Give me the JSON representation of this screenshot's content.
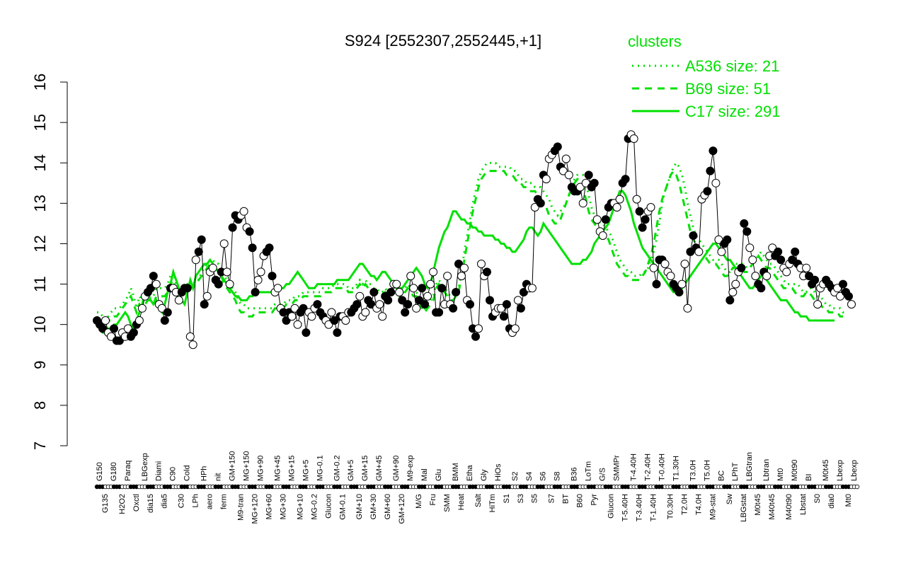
{
  "chart_data": {
    "type": "line",
    "title": "S924 [2552307,2552445,+1]",
    "xlabel": "",
    "ylabel": "",
    "ylim": [
      7,
      16
    ],
    "yticks": [
      7,
      8,
      9,
      10,
      11,
      12,
      13,
      14,
      15,
      16
    ],
    "grid": false,
    "legend": {
      "placement": "top-right",
      "title": "clusters",
      "entries": [
        {
          "label": "A536 size: 21",
          "style": "dotted"
        },
        {
          "label": "B69 size: 51",
          "style": "dashed"
        },
        {
          "label": "C17 size: 291",
          "style": "solid"
        }
      ]
    },
    "colors": {
      "accent": "#00e000",
      "points_dark": "#000000",
      "points_light": "#ffffff"
    },
    "top_labels": [
      "G150",
      "G135",
      "G180",
      "H2O2",
      "Paraq",
      "Oxctl",
      "LBGexp",
      "dia15",
      "Diami",
      "dia5",
      "C90",
      "C30",
      "Cold",
      "LPh",
      "HPh",
      "aero",
      "nit",
      "ferm",
      "GM+150",
      "M9-tran",
      "MG+150",
      "MG+120",
      "MG+90",
      "MG+60",
      "MG+45",
      "MG+30",
      "MG+15",
      "MG+10",
      "MG+5",
      "MG-0.2",
      "MG-0.1",
      "Glucon",
      "GM-0.2",
      "GM-0.1",
      "GM+5",
      "GM+10",
      "GM+15",
      "GM+30",
      "GM+45",
      "GM+60",
      "GM+90",
      "GM+120",
      "M9-exp",
      "M/G",
      "Mal",
      "Fru",
      "Glu",
      "SMM",
      "BMM",
      "Heat",
      "Etha",
      "Salt",
      "Gly",
      "HiTm",
      "HiOs",
      "S1",
      "S2",
      "S3",
      "S4",
      "S5",
      "S6",
      "S7",
      "S8",
      "BT",
      "B36",
      "B60",
      "LoTm",
      "Pyr",
      "G/S",
      "Glucon",
      "SMMPr",
      "T-5.40H",
      "T-4.40H",
      "T-3.40H",
      "T-2.40H",
      "T-1.40H",
      "T-0.40H",
      "T0.30H",
      "T1.30H",
      "T2.0H",
      "T3.0H",
      "T4.0H",
      "T5.0H",
      "M9-stat",
      "BC",
      "Sw",
      "LPhT",
      "LBGstat",
      "LBGtran",
      "M0t45",
      "Lbtran",
      "M40t45",
      "Mt0",
      "M40t90",
      "M0t90",
      "Lbstat",
      "BI",
      "S0",
      "M0t45",
      "dia0",
      "Lbexp",
      "Mt0",
      "Lbexp"
    ],
    "x_count": 270,
    "series": [
      {
        "style": "dotted",
        "values": [
          10.3,
          10.3,
          10.2,
          10.1,
          10.2,
          10.3,
          10.4,
          10.4,
          10.4,
          10.5,
          10.6,
          10.7,
          10.9,
          10.7,
          10.4,
          10.7,
          10.6,
          10.7,
          10.8,
          10.8,
          10.7,
          10.9,
          10.9,
          10.9,
          10.9,
          11.0,
          11.2,
          11.3,
          11.0,
          10.8,
          10.8,
          10.9,
          11.0,
          11.1,
          11.0,
          11.1,
          11.1,
          11.3,
          11.4,
          11.5,
          11.6,
          11.6,
          11.5,
          11.5,
          11.4,
          11.2,
          11.1,
          11.0,
          10.9,
          10.8,
          10.6,
          10.5,
          10.5,
          10.4,
          10.4,
          10.4,
          10.4,
          10.4,
          10.4,
          10.4,
          10.4,
          10.4,
          10.4,
          10.5,
          10.5,
          10.5,
          10.5,
          10.6,
          10.6,
          10.6,
          10.7,
          10.7,
          10.7,
          10.8,
          10.8,
          10.8,
          10.8,
          10.8,
          10.8,
          10.8,
          10.9,
          10.9,
          10.9,
          10.9,
          11.0,
          11.0,
          11.0,
          11.0,
          11.0,
          10.9,
          10.9,
          10.9,
          11.0,
          11.1,
          11.0,
          11.1,
          11.0,
          11.0,
          10.9,
          10.9,
          10.8,
          10.8,
          10.9,
          10.8,
          10.9,
          10.9,
          10.8,
          10.8,
          10.7,
          10.9,
          11.0,
          10.9,
          10.8,
          10.8,
          10.7,
          10.5,
          10.4,
          10.5,
          10.6,
          10.7,
          11.0,
          11.1,
          11.0,
          10.9,
          10.8,
          10.7,
          10.7,
          10.8,
          10.9,
          11.3,
          11.8,
          12.2,
          12.6,
          13.0,
          13.3,
          13.6,
          13.8,
          13.9,
          14.0,
          14.0,
          14.0,
          14.0,
          13.9,
          13.9,
          13.9,
          13.9,
          13.9,
          13.8,
          13.8,
          13.7,
          13.6,
          13.6,
          13.5,
          13.5,
          13.5,
          13.4,
          13.4,
          13.4,
          13.3,
          13.2,
          13.1,
          12.9,
          12.8,
          12.7,
          12.8,
          12.9,
          13.0,
          13.2,
          13.4,
          13.6,
          13.7,
          13.7,
          13.7,
          13.5,
          13.2,
          12.9,
          12.7,
          12.6,
          12.5,
          12.5,
          12.4,
          12.3,
          12.2,
          12.0,
          11.8,
          11.6,
          11.5,
          11.4,
          11.3,
          11.3,
          11.2,
          11.2,
          11.2,
          11.3,
          11.3,
          11.4,
          11.6,
          11.8,
          12.1,
          12.5,
          13.0,
          13.3,
          13.5,
          13.7,
          13.9,
          14.0,
          13.9,
          13.7,
          13.4,
          13.0,
          12.7,
          12.4,
          12.2,
          12.1,
          12.0,
          11.9,
          11.8,
          11.7,
          11.6,
          11.6,
          11.6,
          11.5,
          11.4,
          11.3,
          11.3,
          11.4,
          11.5,
          11.5,
          11.5,
          11.5,
          11.4,
          11.4,
          11.5,
          11.6,
          11.7,
          11.8,
          11.7,
          11.6,
          11.5,
          11.5,
          11.4,
          11.3,
          11.2,
          11.1,
          11.0,
          11.0,
          11.0,
          11.0,
          11.0,
          10.9,
          10.8,
          10.8,
          10.9,
          10.9,
          10.8,
          10.7,
          10.7,
          10.6,
          10.5,
          10.5,
          10.4,
          10.4,
          10.4,
          10.4,
          10.3,
          10.3
        ]
      },
      {
        "style": "dashed",
        "values": [
          10.2,
          10.1,
          10.0,
          10.0,
          10.1,
          10.1,
          10.2,
          10.2,
          10.3,
          10.4,
          10.5,
          10.6,
          10.7,
          10.5,
          10.3,
          10.5,
          10.4,
          10.5,
          10.6,
          10.6,
          10.5,
          10.7,
          10.7,
          10.7,
          10.7,
          10.8,
          11.0,
          11.1,
          10.8,
          10.6,
          10.7,
          10.8,
          10.9,
          11.0,
          10.9,
          11.0,
          11.1,
          11.2,
          11.3,
          11.4,
          11.5,
          11.5,
          11.4,
          11.3,
          11.2,
          11.0,
          10.9,
          10.8,
          10.7,
          10.6,
          10.4,
          10.3,
          10.3,
          10.2,
          10.2,
          10.2,
          10.3,
          10.3,
          10.3,
          10.3,
          10.3,
          10.3,
          10.3,
          10.4,
          10.4,
          10.4,
          10.4,
          10.5,
          10.5,
          10.5,
          10.6,
          10.6,
          10.6,
          10.7,
          10.7,
          10.7,
          10.7,
          10.7,
          10.7,
          10.7,
          10.8,
          10.8,
          10.8,
          10.8,
          10.9,
          10.9,
          10.9,
          10.9,
          10.9,
          10.8,
          10.8,
          10.8,
          10.9,
          11.0,
          10.9,
          11.0,
          10.9,
          10.9,
          10.8,
          10.8,
          10.7,
          10.7,
          10.8,
          10.7,
          10.8,
          10.8,
          10.7,
          10.7,
          10.6,
          10.8,
          10.9,
          10.8,
          10.7,
          10.7,
          10.6,
          10.4,
          10.3,
          10.4,
          10.5,
          10.6,
          10.9,
          11.0,
          10.9,
          10.8,
          10.7,
          10.6,
          10.6,
          10.7,
          10.8,
          11.2,
          11.6,
          12.0,
          12.4,
          12.8,
          13.1,
          13.4,
          13.6,
          13.7,
          13.8,
          13.8,
          13.8,
          13.8,
          13.8,
          13.8,
          13.8,
          13.7,
          13.7,
          13.7,
          13.6,
          13.5,
          13.5,
          13.4,
          13.4,
          13.3,
          13.3,
          13.3,
          13.2,
          13.1,
          13.0,
          12.9,
          12.7,
          12.6,
          12.5,
          12.5,
          12.6,
          12.8,
          13.0,
          13.2,
          13.4,
          13.5,
          13.6,
          13.6,
          13.4,
          13.1,
          12.8,
          12.6,
          12.5,
          12.4,
          12.4,
          12.3,
          12.2,
          12.1,
          11.9,
          11.7,
          11.5,
          11.4,
          11.3,
          11.2,
          11.2,
          11.1,
          11.1,
          11.1,
          11.1,
          11.2,
          11.3,
          11.5,
          11.7,
          12.0,
          12.4,
          12.8,
          13.1,
          13.3,
          13.5,
          13.7,
          13.8,
          13.7,
          13.5,
          13.2,
          12.9,
          12.6,
          12.3,
          12.1,
          12.0,
          11.9,
          11.8,
          11.7,
          11.6,
          11.5,
          11.5,
          11.5,
          11.4,
          11.3,
          11.2,
          11.2,
          11.3,
          11.4,
          11.4,
          11.4,
          11.4,
          11.3,
          11.3,
          11.4,
          11.5,
          11.6,
          11.7,
          11.6,
          11.5,
          11.4,
          11.4,
          11.3,
          11.2,
          11.1,
          11.0,
          10.9,
          10.9,
          10.9,
          10.9,
          10.8,
          10.7,
          10.7,
          10.7,
          10.8,
          10.8,
          10.7,
          10.6,
          10.6,
          10.5,
          10.4,
          10.4,
          10.3,
          10.3,
          10.3,
          10.3,
          10.2,
          10.2
        ]
      },
      {
        "style": "solid",
        "values": [
          10.0,
          9.9,
          9.8,
          9.8,
          9.9,
          9.9,
          10.0,
          10.0,
          10.1,
          10.2,
          10.3,
          10.2,
          10.0,
          9.9,
          10.1,
          10.3,
          10.5,
          10.8,
          10.8,
          10.6,
          10.5,
          10.6,
          10.4,
          10.3,
          10.5,
          10.8,
          11.0,
          11.3,
          11.1,
          10.9,
          10.6,
          10.5,
          10.8,
          11.1,
          10.9,
          11.2,
          11.3,
          11.4,
          11.5,
          11.5,
          11.6,
          11.5,
          11.4,
          11.3,
          11.2,
          11.1,
          11.0,
          10.9,
          10.8,
          10.7,
          10.7,
          10.6,
          10.6,
          10.6,
          10.7,
          10.7,
          10.8,
          10.8,
          10.8,
          10.8,
          10.8,
          10.8,
          10.8,
          10.8,
          10.9,
          10.9,
          10.9,
          11.0,
          11.0,
          11.1,
          11.2,
          11.3,
          11.2,
          11.1,
          11.0,
          10.9,
          10.9,
          10.9,
          11.0,
          11.0,
          11.0,
          11.0,
          11.0,
          11.0,
          11.0,
          11.1,
          11.1,
          11.1,
          11.1,
          11.1,
          11.2,
          11.3,
          11.4,
          11.5,
          11.5,
          11.4,
          11.3,
          11.2,
          11.2,
          11.1,
          11.2,
          11.3,
          11.3,
          11.2,
          11.1,
          11.0,
          10.9,
          10.9,
          10.9,
          11.0,
          11.1,
          11.2,
          11.3,
          11.4,
          11.3,
          11.2,
          11.0,
          10.9,
          11.0,
          11.3,
          11.6,
          11.9,
          12.1,
          12.3,
          12.4,
          12.6,
          12.8,
          12.8,
          12.7,
          12.6,
          12.6,
          12.5,
          12.5,
          12.4,
          12.4,
          12.3,
          12.3,
          12.2,
          12.2,
          12.2,
          12.2,
          12.1,
          12.1,
          12.0,
          12.0,
          11.9,
          11.9,
          11.8,
          11.8,
          11.9,
          12.0,
          12.1,
          12.3,
          12.4,
          12.4,
          12.3,
          12.2,
          12.3,
          12.5,
          12.4,
          12.3,
          12.2,
          12.1,
          12.0,
          11.9,
          11.8,
          11.7,
          11.6,
          11.5,
          11.5,
          11.5,
          11.5,
          11.6,
          11.6,
          11.7,
          11.8,
          12.0,
          12.1,
          12.2,
          12.3,
          12.4,
          12.5,
          12.7,
          12.9,
          13.1,
          13.3,
          13.3,
          13.2,
          13.0,
          12.8,
          12.5,
          12.3,
          12.1,
          11.9,
          11.8,
          11.7,
          11.6,
          11.5,
          11.4,
          11.3,
          11.2,
          11.1,
          11.0,
          10.9,
          10.8,
          10.8,
          10.8,
          10.9,
          11.0,
          11.1,
          11.2,
          11.3,
          11.4,
          11.5,
          11.6,
          11.7,
          11.8,
          11.9,
          12.0,
          12.0,
          11.9,
          11.8,
          11.7,
          11.6,
          11.6,
          11.5,
          11.4,
          11.3,
          11.2,
          11.1,
          11.0,
          10.9,
          10.9,
          11.0,
          11.1,
          11.2,
          11.2,
          11.1,
          11.0,
          10.9,
          10.8,
          10.7,
          10.6,
          10.6,
          10.6,
          10.5,
          10.4,
          10.3,
          10.3,
          10.2,
          10.2,
          10.2,
          10.1,
          10.1,
          10.1,
          10.1,
          10.1,
          10.1,
          10.1,
          10.1,
          10.1,
          10.1
        ]
      },
      {
        "style": "points",
        "values": [
          10.1,
          10.0,
          9.9,
          10.1,
          9.8,
          9.7,
          9.9,
          9.6,
          9.6,
          9.8,
          9.7,
          9.9,
          9.7,
          9.8,
          10.0,
          10.1,
          10.4,
          10.7,
          10.8,
          10.9,
          11.2,
          11.0,
          10.5,
          10.4,
          10.1,
          10.3,
          10.9,
          10.9,
          10.8,
          10.6,
          10.8,
          10.9,
          10.9,
          9.7,
          9.5,
          11.6,
          11.8,
          12.1,
          10.5,
          10.7,
          11.3,
          11.4,
          11.1,
          11.0,
          11.3,
          12.0,
          11.3,
          11.0,
          12.4,
          12.7,
          12.6,
          12.7,
          12.8,
          12.4,
          12.3,
          11.9,
          10.8,
          11.1,
          11.3,
          11.7,
          11.8,
          11.9,
          11.2,
          10.8,
          10.9,
          10.4,
          10.3,
          10.1,
          10.3,
          10.2,
          10.4,
          10.0,
          10.3,
          10.4,
          9.8,
          10.3,
          10.2,
          10.4,
          10.5,
          10.3,
          10.2,
          10.1,
          10.0,
          10.3,
          10.1,
          9.8,
          10.2,
          10.2,
          10.1,
          10.3,
          10.3,
          10.4,
          10.5,
          10.7,
          10.2,
          10.3,
          10.6,
          10.5,
          10.8,
          10.4,
          10.5,
          10.2,
          10.7,
          10.6,
          10.8,
          11.0,
          11.0,
          10.8,
          10.6,
          10.3,
          10.5,
          11.2,
          10.9,
          10.4,
          10.6,
          10.9,
          10.5,
          10.7,
          11.0,
          11.3,
          10.3,
          10.3,
          10.9,
          10.5,
          11.2,
          10.5,
          10.4,
          10.8,
          11.5,
          11.2,
          11.4,
          10.6,
          10.5,
          9.9,
          9.7,
          9.9,
          11.5,
          11.2,
          11.3,
          10.6,
          10.2,
          10.3,
          10.4,
          10.4,
          10.2,
          10.5,
          9.9,
          9.8,
          9.9,
          10.6,
          10.4,
          10.8,
          11.0,
          10.9,
          10.9,
          12.9,
          13.1,
          13.0,
          13.7,
          13.6,
          14.1,
          14.2,
          14.3,
          14.4,
          13.9,
          13.8,
          14.1,
          13.7,
          13.4,
          13.3,
          13.3,
          13.4,
          13.0,
          13.5,
          13.7,
          13.4,
          13.5,
          12.6,
          12.3,
          12.2,
          12.6,
          12.9,
          13.0,
          13.0,
          12.9,
          13.1,
          13.5,
          13.6,
          14.6,
          14.7,
          14.6,
          13.1,
          12.8,
          12.4,
          12.6,
          12.8,
          12.9,
          11.4,
          11.0,
          11.6,
          11.6,
          11.5,
          11.3,
          11.2,
          11.0,
          10.9,
          10.8,
          11.0,
          11.5,
          10.4,
          11.8,
          12.2,
          11.9,
          11.8,
          13.1,
          13.2,
          13.3,
          13.8,
          14.3,
          13.5,
          12.1,
          11.8,
          12.0,
          12.1,
          10.6,
          10.8,
          11.0,
          11.3,
          11.4,
          12.5,
          12.3,
          11.9,
          11.6,
          11.2,
          11.0,
          10.9,
          11.3,
          11.2,
          11.7,
          11.9,
          11.7,
          11.8,
          11.6,
          11.4,
          11.3,
          11.5,
          11.6,
          11.8,
          11.5,
          11.4,
          11.2,
          11.4,
          11.2,
          11.0,
          11.1,
          10.5,
          10.9,
          11.0,
          11.1,
          11.0,
          10.9,
          10.8,
          10.9,
          10.7,
          11.0,
          10.8,
          10.7,
          10.5
        ]
      }
    ]
  }
}
